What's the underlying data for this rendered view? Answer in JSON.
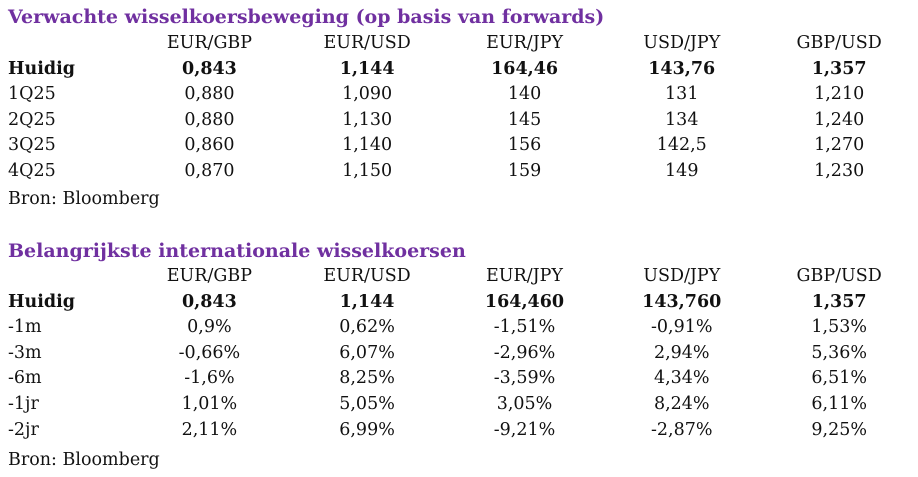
{
  "forecast": {
    "title": "Verwachte wisselkoersbeweging (op basis van forwards)",
    "columns": [
      "EUR/GBP",
      "EUR/USD",
      "EUR/JPY",
      "USD/JPY",
      "GBP/USD"
    ],
    "rows": [
      {
        "label": "Huidig",
        "values": [
          "0,843",
          "1,144",
          "164,46",
          "143,76",
          "1,357"
        ]
      },
      {
        "label": "1Q25",
        "values": [
          "0,880",
          "1,090",
          "140",
          "131",
          "1,210"
        ]
      },
      {
        "label": "2Q25",
        "values": [
          "0,880",
          "1,130",
          "145",
          "134",
          "1,240"
        ]
      },
      {
        "label": "3Q25",
        "values": [
          "0,860",
          "1,140",
          "156",
          "142,5",
          "1,270"
        ]
      },
      {
        "label": "4Q25",
        "values": [
          "0,870",
          "1,150",
          "159",
          "149",
          "1,230"
        ]
      }
    ],
    "source": "Bron: Bloomberg"
  },
  "rates": {
    "title": "Belangrijkste internationale wisselkoersen",
    "columns": [
      "EUR/GBP",
      "EUR/USD",
      "EUR/JPY",
      "USD/JPY",
      "GBP/USD"
    ],
    "rows": [
      {
        "label": "Huidig",
        "values": [
          "0,843",
          "1,144",
          "164,460",
          "143,760",
          "1,357"
        ]
      },
      {
        "label": "-1m",
        "values": [
          "0,9%",
          "0,62%",
          "-1,51%",
          "-0,91%",
          "1,53%"
        ]
      },
      {
        "label": "-3m",
        "values": [
          "-0,66%",
          "6,07%",
          "-2,96%",
          "2,94%",
          "5,36%"
        ]
      },
      {
        "label": "-6m",
        "values": [
          "-1,6%",
          "8,25%",
          "-3,59%",
          "4,34%",
          "6,51%"
        ]
      },
      {
        "label": "-1jr",
        "values": [
          "1,01%",
          "5,05%",
          "3,05%",
          "8,24%",
          "6,11%"
        ]
      },
      {
        "label": "-2jr",
        "values": [
          "2,11%",
          "6,99%",
          "-9,21%",
          "-2,87%",
          "9,25%"
        ]
      }
    ],
    "source": "Bron: Bloomberg"
  },
  "colors": {
    "title": "#7030a0",
    "text": "#111111"
  }
}
